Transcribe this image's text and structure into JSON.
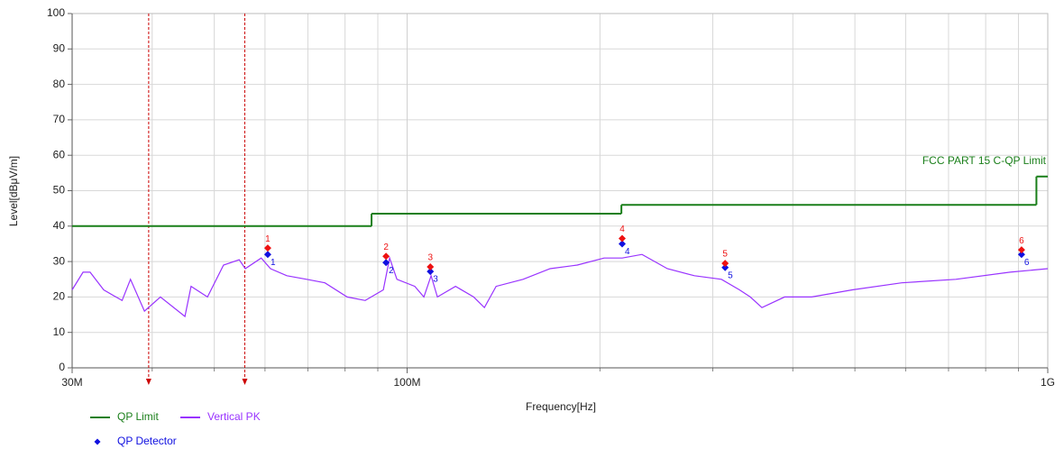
{
  "chart_data": {
    "type": "line",
    "xlabel": "Frequency[Hz]",
    "ylabel": "Level[dBμV/m]",
    "xscale": "log",
    "xlim": [
      30000000,
      1000000000
    ],
    "ylim": [
      0,
      100
    ],
    "xticks": [
      {
        "value": 30000000,
        "label": "30M"
      },
      {
        "value": 100000000,
        "label": "100M"
      },
      {
        "value": 1000000000,
        "label": "1G"
      }
    ],
    "x_minor_grid": [
      40000000,
      50000000,
      60000000,
      70000000,
      80000000,
      90000000,
      200000000,
      300000000,
      400000000,
      500000000,
      600000000,
      700000000,
      800000000,
      900000000
    ],
    "yticks": [
      0,
      10,
      20,
      30,
      40,
      50,
      60,
      70,
      80,
      90,
      100
    ],
    "grid": true,
    "limit": {
      "name": "QP Limit",
      "label": "FCC PART 15 C-QP Limit",
      "color": "#1a7f1a",
      "bins": [
        30000000,
        88000000,
        216000000,
        960000000,
        1000000000
      ],
      "values": [
        40,
        43.5,
        46,
        54
      ]
    },
    "series": [
      {
        "name": "Vertical PK",
        "color": "#9933ff",
        "x": [
          30000000,
          31200000,
          32000000,
          33600000,
          35900000,
          37000000,
          38900000,
          41200000,
          45000000,
          46000000,
          48800000,
          51700000,
          54700000,
          55900000,
          59200000,
          61200000,
          64900000,
          69700000,
          74400000,
          80600000,
          86000000,
          91800000,
          93900000,
          96400000,
          102800000,
          106200000,
          109000000,
          111500000,
          119000000,
          127000000,
          132000000,
          137700000,
          151700000,
          167200000,
          184300000,
          203000000,
          216700000,
          232600000,
          254800000,
          280800000,
          309500000,
          330200000,
          343300000,
          358000000,
          388300000,
          427900000,
          495300000,
          591600000,
          718800000,
          873000000,
          1000000000
        ],
        "values": [
          22,
          27,
          27,
          22,
          19,
          25,
          16,
          20,
          14.5,
          23,
          20,
          29,
          30.5,
          28,
          31,
          28,
          26,
          25,
          24,
          20,
          19,
          22,
          31,
          25,
          23,
          20,
          26,
          20,
          23,
          20,
          17,
          23,
          25,
          28,
          29,
          31,
          31,
          32,
          28,
          26,
          25,
          22,
          20,
          17,
          20,
          20,
          22,
          24,
          25,
          27,
          28
        ]
      },
      {
        "name": "QP Detector",
        "color": "#1010e0",
        "style": "diamond",
        "x": [
          60600000,
          92700000,
          108700000,
          216600000,
          313600000,
          910000000
        ],
        "values": [
          32,
          29.7,
          27.2,
          35,
          28.3,
          32
        ],
        "point_labels": [
          "1",
          "2",
          "3",
          "4",
          "5",
          "6"
        ]
      }
    ],
    "peaks": {
      "color": "#ee1111",
      "x": [
        60600000,
        92700000,
        108700000,
        216600000,
        313600000,
        910000000
      ],
      "values": [
        33.8,
        31.5,
        28.5,
        36.5,
        29.5,
        33.3
      ],
      "point_labels": [
        "1",
        "2",
        "3",
        "4",
        "5",
        "6"
      ]
    },
    "reference_lines": {
      "color": "#cc0000",
      "x": [
        39500000,
        55800000
      ]
    }
  }
}
